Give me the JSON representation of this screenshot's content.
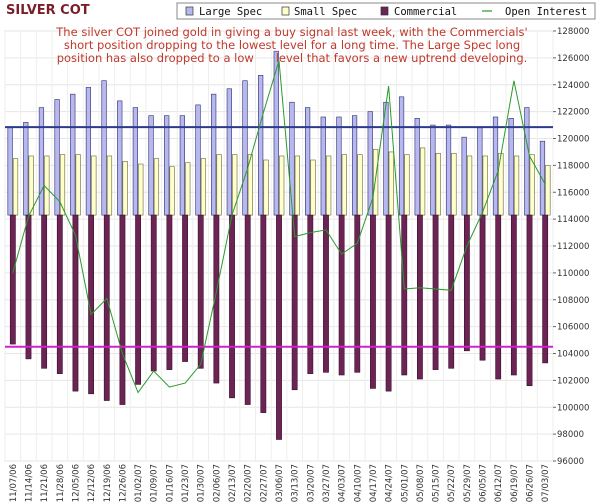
{
  "chart_data": {
    "type": "bar",
    "title": "SILVER COT",
    "annotation": [
      "The silver COT joined gold in giving a buy signal last week, with the Commercials'",
      "short position dropping to the lowest level for a long time. The Large Spec long",
      "position has also dropped to a low      level that favors a new uptrend developing."
    ],
    "legend": [
      "Large Spec",
      "Small Spec",
      "Commercial",
      "Open Interest"
    ],
    "legend_position": "top",
    "categories": [
      "11/07/06",
      "11/14/06",
      "11/21/06",
      "11/28/06",
      "12/05/06",
      "12/12/06",
      "12/19/06",
      "12/26/06",
      "01/02/07",
      "01/09/07",
      "01/16/07",
      "01/23/07",
      "01/30/07",
      "02/06/07",
      "02/13/07",
      "02/20/07",
      "02/27/07",
      "03/06/07",
      "03/13/07",
      "03/20/07",
      "03/27/07",
      "04/03/07",
      "04/10/07",
      "04/17/07",
      "04/24/07",
      "05/01/07",
      "05/08/07",
      "05/15/07",
      "05/22/07",
      "05/29/07",
      "06/05/07",
      "06/12/07",
      "06/19/07",
      "06/26/07",
      "07/03/07"
    ],
    "x_tick_labels": [
      "11/07/06",
      "11/14/06",
      "11/21/06",
      "11/28/06",
      "12/05/06",
      "12/12/06",
      "12/19/06",
      "12/26/06",
      "01/02/07",
      "01/09/07",
      "01/16/07",
      "01/23/07",
      "01/30/07",
      "02/06/07",
      "02/13/07",
      "02/20/07",
      "02/27/07",
      "03/06/07",
      "03/13/07",
      "03/20/07",
      "03/27/07",
      "04/03/07",
      "04/10/07",
      "04/17/07",
      "04/24/07",
      "05/01/07",
      "05/08/07",
      "05/15/07",
      "05/22/07",
      "05/29/07",
      "06/05/07",
      "06/12/07",
      "06/19/07",
      "06/26/07",
      "07/03/07"
    ],
    "y_ticks": [
      96000,
      98000,
      100000,
      102000,
      104000,
      106000,
      108000,
      110000,
      112000,
      114000,
      116000,
      118000,
      120000,
      122000,
      124000,
      126000,
      128000
    ],
    "ylim": [
      96000,
      128000
    ],
    "baseline": 114300,
    "series": [
      {
        "name": "Large Spec",
        "color": "#b8b8f0",
        "values": [
          120800,
          121200,
          122300,
          122900,
          123300,
          123800,
          124300,
          122800,
          122300,
          121700,
          121700,
          121700,
          122500,
          123300,
          123700,
          124300,
          124700,
          126500,
          122700,
          122300,
          121600,
          121600,
          121700,
          122000,
          122700,
          123100,
          121500,
          121000,
          121000,
          120100,
          120800,
          121600,
          121500,
          122300,
          119800
        ]
      },
      {
        "name": "Small Spec",
        "color": "#ffffcc",
        "values": [
          118500,
          118700,
          118700,
          118800,
          118800,
          118700,
          118700,
          118300,
          118100,
          118500,
          117900,
          118200,
          118500,
          118800,
          118800,
          118800,
          118400,
          118700,
          118700,
          118400,
          118700,
          118800,
          118800,
          119200,
          119000,
          118800,
          119300,
          118900,
          118900,
          118700,
          118700,
          118900,
          118700,
          118800,
          118000
        ]
      },
      {
        "name": "Commercial",
        "color": "#6b2454",
        "values": [
          104700,
          103600,
          102900,
          102500,
          101200,
          101000,
          100500,
          100200,
          101700,
          102700,
          102800,
          103400,
          102900,
          101800,
          100700,
          100200,
          99600,
          97600,
          101300,
          102500,
          102600,
          102400,
          102600,
          101400,
          101200,
          102400,
          102100,
          102800,
          102900,
          104200,
          103500,
          102100,
          102400,
          101600,
          103300
        ]
      },
      {
        "name": "Open Interest",
        "color": "#2a9a2a",
        "values": [
          110000,
          114200,
          116500,
          115300,
          112800,
          106900,
          108100,
          104000,
          101100,
          102700,
          101500,
          101800,
          103200,
          108600,
          114300,
          117800,
          121900,
          125800,
          112700,
          113000,
          113200,
          111400,
          112200,
          115600,
          123900,
          108800,
          108900,
          108800,
          108700,
          112000,
          114500,
          117600,
          124300,
          118700,
          116600
        ]
      }
    ],
    "reference_lines": [
      {
        "value": 120850,
        "color": "#2c3a8c"
      },
      {
        "value": 104500,
        "color": "#d020d0"
      }
    ]
  }
}
